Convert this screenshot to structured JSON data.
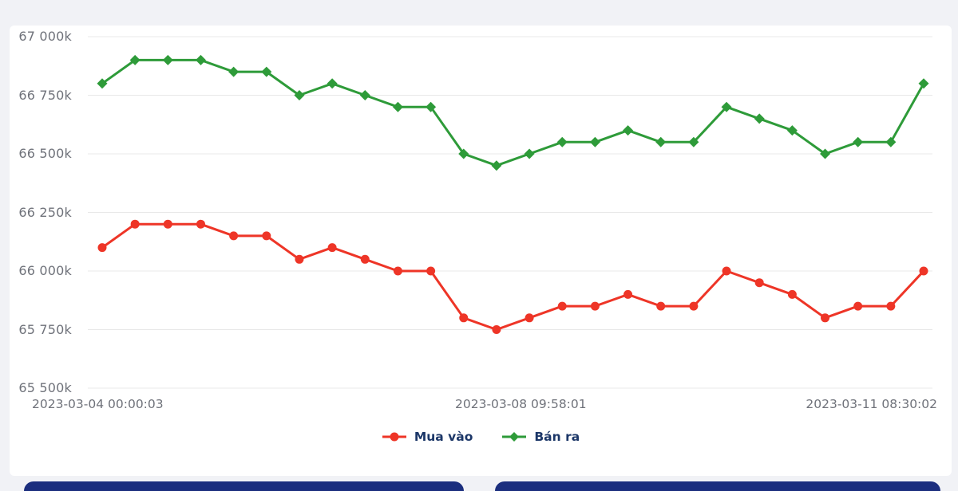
{
  "colors": {
    "background": "#f1f2f6",
    "card": "#ffffff",
    "grid": "#e8e8e8",
    "axis_text": "#6f727a",
    "legend_text": "#1c3768",
    "buy_red": "#ee3527",
    "sell_green": "#2e9b39",
    "footer_bar": "#1b2e7e"
  },
  "chart_data": {
    "type": "line",
    "title": "",
    "xlabel": "",
    "ylabel": "",
    "grid": "horizontal",
    "legend_position": "bottom",
    "ylim": [
      65500,
      67000
    ],
    "y_ticks": [
      67000,
      66750,
      66500,
      66250,
      66000,
      65750,
      65500
    ],
    "y_tick_labels": [
      "67 000k",
      "66 750k",
      "66 500k",
      "66 250k",
      "66 000k",
      "65 750k",
      "65 500k"
    ],
    "x_tick_labels": [
      "2023-03-04 00:00:03",
      "2023-03-08 09:58:01",
      "2023-03-11 08:30:02"
    ],
    "series": [
      {
        "name": "Mua vào",
        "color": "#ee3527",
        "marker": "circle",
        "values": [
          66100,
          66200,
          66200,
          66200,
          66150,
          66150,
          66050,
          66100,
          66050,
          66000,
          66000,
          65800,
          65750,
          65800,
          65850,
          65850,
          65900,
          65850,
          65850,
          66000,
          65950,
          65900,
          65800,
          65850,
          65850,
          66000
        ]
      },
      {
        "name": "Bán ra",
        "color": "#2e9b39",
        "marker": "diamond",
        "values": [
          66800,
          66900,
          66900,
          66900,
          66850,
          66850,
          66750,
          66800,
          66750,
          66700,
          66700,
          66500,
          66450,
          66500,
          66550,
          66550,
          66600,
          66550,
          66550,
          66700,
          66650,
          66600,
          66500,
          66550,
          66550,
          66800
        ]
      }
    ]
  }
}
